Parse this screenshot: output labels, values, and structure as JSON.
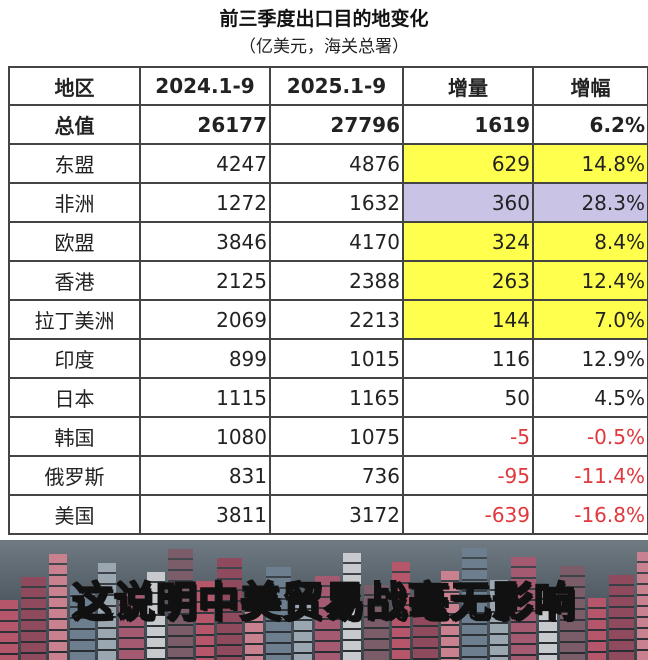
{
  "title": "前三季度出口目的地变化",
  "subtitle": "（亿美元，海关总署）",
  "table": {
    "headers": [
      "地区",
      "2024.1-9",
      "2025.1-9",
      "增量",
      "增幅"
    ],
    "total": {
      "region": "总值",
      "y2024": "26177",
      "y2025": "27796",
      "delta": "1619",
      "pct": "6.2%"
    },
    "rows": [
      {
        "region": "东盟",
        "y2024": "4247",
        "y2025": "4876",
        "delta": "629",
        "pct": "14.8%",
        "highlight": "#ffff4d"
      },
      {
        "region": "非洲",
        "y2024": "1272",
        "y2025": "1632",
        "delta": "360",
        "pct": "28.3%",
        "highlight": "#c9c3e6"
      },
      {
        "region": "欧盟",
        "y2024": "3846",
        "y2025": "4170",
        "delta": "324",
        "pct": "8.4%",
        "highlight": "#ffff4d"
      },
      {
        "region": "香港",
        "y2024": "2125",
        "y2025": "2388",
        "delta": "263",
        "pct": "12.4%",
        "highlight": "#ffff4d"
      },
      {
        "region": "拉丁美洲",
        "y2024": "2069",
        "y2025": "2213",
        "delta": "144",
        "pct": "7.0%",
        "highlight": "#ffff4d"
      },
      {
        "region": "印度",
        "y2024": "899",
        "y2025": "1015",
        "delta": "116",
        "pct": "12.9%"
      },
      {
        "region": "日本",
        "y2024": "1115",
        "y2025": "1165",
        "delta": "50",
        "pct": "4.5%"
      },
      {
        "region": "韩国",
        "y2024": "1080",
        "y2025": "1075",
        "delta": "-5",
        "pct": "-0.5%",
        "negative": true
      },
      {
        "region": "俄罗斯",
        "y2024": "831",
        "y2025": "736",
        "delta": "-95",
        "pct": "-11.4%",
        "negative": true
      },
      {
        "region": "美国",
        "y2024": "3811",
        "y2025": "3172",
        "delta": "-639",
        "pct": "-16.8%",
        "negative": true
      }
    ]
  },
  "video": {
    "caption": "这说明中美贸易战毫无影响"
  },
  "colors": {
    "highlight_yellow": "#ffff4d",
    "highlight_lavender": "#c9c3e6",
    "negative": "#e0383d"
  }
}
